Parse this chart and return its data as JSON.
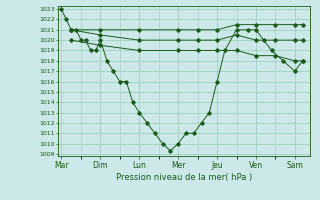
{
  "background_color": "#cde8e8",
  "grid_color": "#99ccbb",
  "line_color": "#1a5c1a",
  "title": "Pression niveau de la mer( hPa )",
  "ylim_min": 1009,
  "ylim_max": 1023,
  "yticks": [
    1009,
    1010,
    1011,
    1012,
    1013,
    1014,
    1015,
    1016,
    1017,
    1018,
    1019,
    1020,
    1021,
    1022,
    1023
  ],
  "x_labels": [
    "Mar",
    "Dim",
    "Lun",
    "Mer",
    "Jeu",
    "Ven",
    "Sam"
  ],
  "x_positions": [
    0,
    1,
    2,
    3,
    4,
    5,
    6
  ],
  "line_main_x": [
    0,
    0.12,
    0.25,
    0.38,
    0.5,
    0.62,
    0.75,
    0.88,
    1.0,
    1.17,
    1.33,
    1.5,
    1.67,
    1.83,
    2.0,
    2.2,
    2.4,
    2.6,
    2.8,
    3.0,
    3.2,
    3.4,
    3.6,
    3.8,
    4.0,
    4.2,
    4.5,
    4.8,
    5.0,
    5.2,
    5.4,
    5.7,
    6.0,
    6.2
  ],
  "line_main_y": [
    1023,
    1022,
    1021,
    1021,
    1020,
    1020,
    1019,
    1019,
    1020,
    1018,
    1017,
    1016,
    1016,
    1014,
    1013,
    1012,
    1011,
    1010,
    1009.3,
    1010,
    1011,
    1011,
    1012,
    1013,
    1016,
    1019,
    1021,
    1021,
    1021,
    1020,
    1019,
    1018,
    1017,
    1018
  ],
  "line_flat1_x": [
    0.25,
    1.0,
    2.0,
    3.0,
    3.5,
    4.0,
    4.5,
    5.0,
    5.5,
    6.0,
    6.2
  ],
  "line_flat1_y": [
    1021,
    1021,
    1021,
    1021,
    1021,
    1021,
    1021.5,
    1021.5,
    1021.5,
    1021.5,
    1021.5
  ],
  "line_flat2_x": [
    0.25,
    1.0,
    2.0,
    3.0,
    3.5,
    4.0,
    4.5,
    5.0,
    5.5,
    6.0,
    6.2
  ],
  "line_flat2_y": [
    1021,
    1020.5,
    1020,
    1020,
    1020,
    1020,
    1020.5,
    1020,
    1020,
    1020,
    1020
  ],
  "line_flat3_x": [
    0.25,
    1.0,
    2.0,
    3.0,
    3.5,
    4.0,
    4.5,
    5.0,
    5.5,
    6.0,
    6.2
  ],
  "line_flat3_y": [
    1020,
    1019.5,
    1019,
    1019,
    1019,
    1019,
    1019,
    1018.5,
    1018.5,
    1018,
    1018
  ]
}
